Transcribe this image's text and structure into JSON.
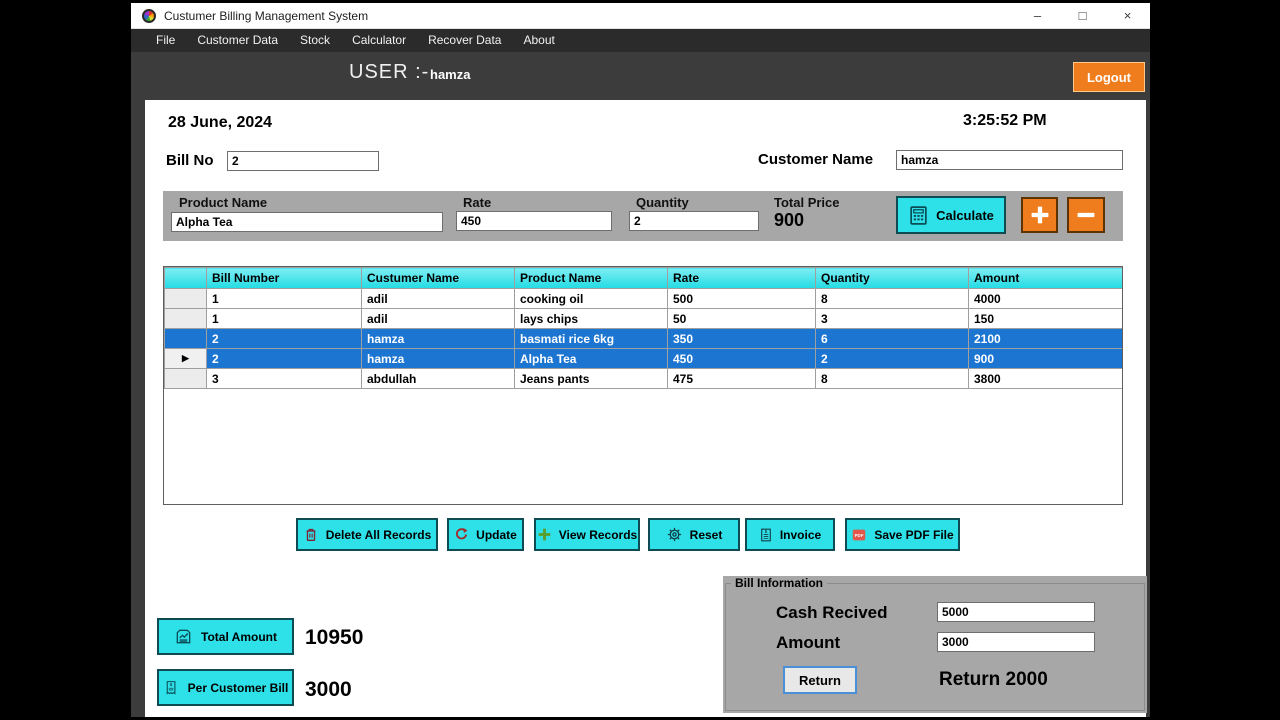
{
  "window": {
    "title": "Custumer Billing Management System",
    "minimize": "–",
    "maximize": "□",
    "close": "×"
  },
  "menu": {
    "items": [
      "File",
      "Customer Data",
      "Stock",
      "Calculator",
      "Recover Data",
      "About"
    ]
  },
  "header": {
    "user_label": "USER :-",
    "user_name": "hamza",
    "logout": "Logout"
  },
  "info": {
    "date": "28 June, 2024",
    "time": "3:25:52 PM",
    "bill_no_label": "Bill No",
    "bill_no": "2",
    "customer_name_label": "Customer Name",
    "customer_name": "hamza"
  },
  "entry": {
    "product_label": "Product Name",
    "product": "Alpha Tea",
    "rate_label": "Rate",
    "rate": "450",
    "qty_label": "Quantity",
    "qty": "2",
    "total_label": "Total Price",
    "total": "900",
    "calculate": "Calculate"
  },
  "table": {
    "headers": [
      "Bill Number",
      "Custumer Name",
      "Product Name",
      "Rate",
      "Quantity",
      "Amount"
    ],
    "current_marker": "▶",
    "rows": [
      {
        "cells": [
          "1",
          "adil",
          "cooking oil",
          "500",
          "8",
          "4000"
        ],
        "selected": false,
        "current": false
      },
      {
        "cells": [
          "1",
          "adil",
          "lays chips",
          "50",
          "3",
          "150"
        ],
        "selected": false,
        "current": false
      },
      {
        "cells": [
          "2",
          "hamza",
          "basmati rice 6kg",
          "350",
          "6",
          "2100"
        ],
        "selected": true,
        "current": false
      },
      {
        "cells": [
          "2",
          "hamza",
          "Alpha Tea",
          "450",
          "2",
          "900"
        ],
        "selected": true,
        "current": true
      },
      {
        "cells": [
          "3",
          "abdullah",
          "Jeans pants",
          "475",
          "8",
          "3800"
        ],
        "selected": false,
        "current": false
      }
    ]
  },
  "actions": {
    "delete_all": "Delete All Records",
    "update": "Update",
    "view": "View Records",
    "reset": "Reset",
    "invoice": "Invoice",
    "save_pdf": "Save PDF File"
  },
  "totals": {
    "total_label": "Total Amount",
    "total_value": "10950",
    "per_customer_label": "Per Customer Bill",
    "per_customer_value": "3000"
  },
  "bill_info": {
    "title": "Bill Information",
    "cash_label": "Cash Recived",
    "cash": "5000",
    "amount_label": "Amount",
    "amount": "3000",
    "return_btn": "Return",
    "return_text": "Return 2000"
  },
  "colors": {
    "cyan": "#2ee1e8",
    "orange": "#f07d1d",
    "selection_blue": "#1b75d1",
    "header_dark": "#3c3c3c",
    "panel_gray": "#a7a7a7"
  }
}
